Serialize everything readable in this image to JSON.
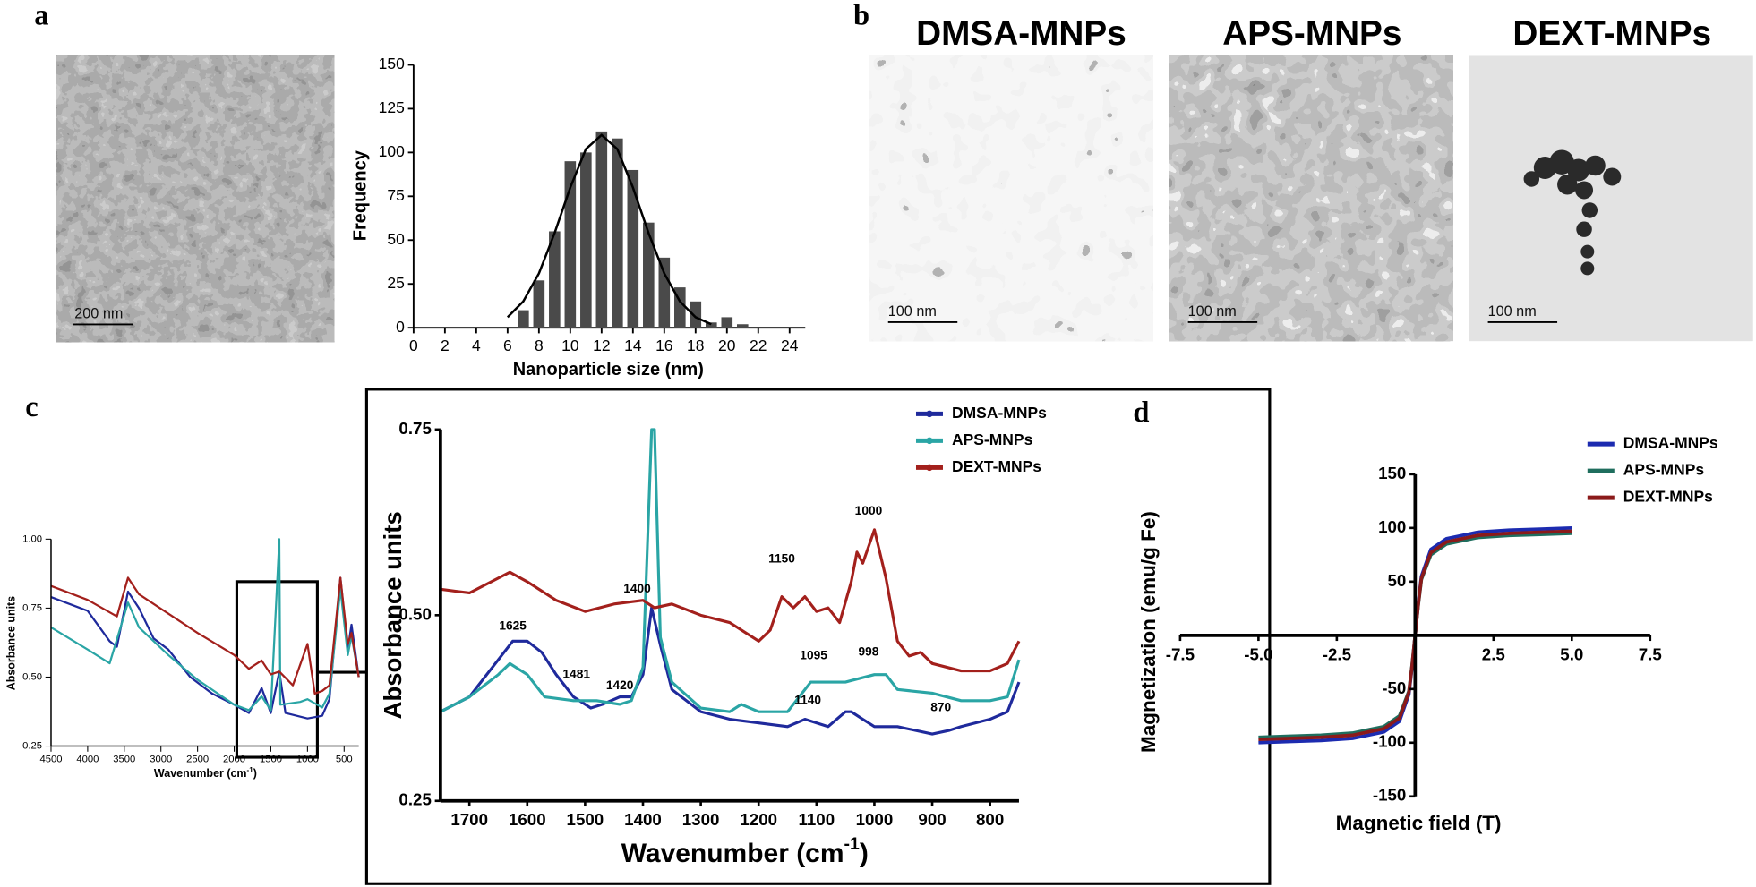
{
  "panel_labels": [
    "a",
    "b",
    "c",
    "d"
  ],
  "images": [
    {
      "scale_bar": "200 nm"
    },
    {
      "title": "DMSA-MNPs",
      "scale_bar": "100 nm"
    },
    {
      "title": "APS-MNPs",
      "scale_bar": "100 nm"
    },
    {
      "title": "DEXT-MNPs",
      "scale_bar": "100 nm"
    }
  ],
  "chart_data": [
    {
      "type": "histogram",
      "x_label": "Nanoparticle size (nm)",
      "y_label": "Frequency",
      "bins": [
        6.5,
        7.5,
        8.5,
        9.5,
        10.5,
        11.5,
        12.5,
        13.5,
        14.5,
        15.5,
        16.5,
        17.5,
        18.5,
        19.5,
        20.5,
        21.5
      ],
      "counts": [
        10,
        27,
        55,
        95,
        100,
        112,
        108,
        90,
        60,
        40,
        23,
        15,
        3,
        6,
        2
      ],
      "color": "#4a4a4a",
      "fit": {
        "x": [
          6,
          7,
          8,
          9,
          10,
          11,
          12,
          13,
          14,
          15,
          16,
          17,
          18,
          19
        ],
        "values": [
          6,
          15,
          31,
          54,
          80,
          102,
          110,
          102,
          80,
          54,
          31,
          15,
          6,
          2
        ],
        "color": "#000000"
      },
      "xlim": [
        0,
        25
      ],
      "xticks": [
        0,
        2,
        4,
        6,
        8,
        10,
        12,
        14,
        16,
        18,
        20,
        22,
        24
      ],
      "ylim": [
        0,
        150
      ],
      "yticks": [
        0,
        25,
        50,
        75,
        100,
        125,
        150
      ]
    },
    {
      "type": "line",
      "x_label": [
        "Wavenumber (cm",
        "-1",
        ")"
      ],
      "y_label": "Absorbance units",
      "xlim": [
        4500,
        300
      ],
      "xticks": [
        4500,
        4000,
        3500,
        3000,
        2500,
        2000,
        1500,
        1000,
        500
      ],
      "ylim": [
        0.25,
        1.0
      ],
      "yticks": [
        0.25,
        {
          "value": 0.5,
          "label": "0.50"
        },
        0.75,
        {
          "value": 1.0,
          "label": "1.00"
        }
      ],
      "series": [
        {
          "name": "DMSA-MNPs",
          "color": "#1f2a9c",
          "x": [
            4500,
            4000,
            3700,
            3600,
            3450,
            3300,
            3100,
            2900,
            2600,
            2300,
            2000,
            1800,
            1625,
            1500,
            1385,
            1300,
            1000,
            800,
            700,
            550,
            450,
            400,
            300
          ],
          "values": [
            0.79,
            0.74,
            0.63,
            0.61,
            0.81,
            0.75,
            0.64,
            0.6,
            0.5,
            0.44,
            0.4,
            0.37,
            0.46,
            0.37,
            0.52,
            0.37,
            0.35,
            0.36,
            0.42,
            0.86,
            0.6,
            0.69,
            0.5
          ]
        },
        {
          "name": "APS-MNPs",
          "color": "#2aa5a5",
          "x": [
            4500,
            4000,
            3700,
            3450,
            3300,
            2900,
            2500,
            2000,
            1800,
            1625,
            1500,
            1385,
            1370,
            1100,
            1000,
            800,
            700,
            550,
            450,
            400,
            300
          ],
          "values": [
            0.68,
            0.6,
            0.55,
            0.77,
            0.68,
            0.58,
            0.49,
            0.4,
            0.38,
            0.43,
            0.38,
            1.0,
            0.4,
            0.41,
            0.42,
            0.39,
            0.44,
            0.82,
            0.58,
            0.65,
            0.5
          ]
        },
        {
          "name": "DEXT-MNPs",
          "color": "#a3201c",
          "x": [
            4500,
            4000,
            3600,
            3450,
            3300,
            2900,
            2500,
            2000,
            1800,
            1625,
            1500,
            1385,
            1200,
            1000,
            900,
            800,
            700,
            550,
            450,
            400,
            300
          ],
          "values": [
            0.83,
            0.78,
            0.72,
            0.86,
            0.8,
            0.73,
            0.66,
            0.58,
            0.53,
            0.56,
            0.51,
            0.52,
            0.47,
            0.62,
            0.44,
            0.45,
            0.47,
            0.86,
            0.62,
            0.66,
            0.5
          ]
        }
      ]
    },
    {
      "type": "line",
      "x_label": [
        "Wavenumber (cm",
        "-1",
        ")"
      ],
      "y_label": "Absorbance units",
      "xlim": [
        1750,
        750
      ],
      "xticks": [
        1700,
        1600,
        1500,
        1400,
        1300,
        1200,
        1100,
        1000,
        900,
        800
      ],
      "ylim": [
        0.25,
        0.75
      ],
      "yticks": [
        0.25,
        {
          "value": 0.5,
          "label": "0.50"
        },
        0.75
      ],
      "legend": "upper right",
      "series": [
        {
          "name": "DMSA-MNPs",
          "color": "#1f2a9c",
          "x": [
            1750,
            1700,
            1650,
            1625,
            1600,
            1575,
            1550,
            1520,
            1490,
            1470,
            1440,
            1420,
            1400,
            1385,
            1370,
            1350,
            1300,
            1250,
            1200,
            1150,
            1120,
            1100,
            1080,
            1050,
            1040,
            1020,
            1000,
            960,
            900,
            870,
            850,
            800,
            770,
            750
          ],
          "values": [
            0.37,
            0.39,
            0.44,
            0.465,
            0.465,
            0.45,
            0.42,
            0.39,
            0.375,
            0.38,
            0.39,
            0.39,
            0.42,
            0.51,
            0.46,
            0.4,
            0.37,
            0.36,
            0.355,
            0.35,
            0.36,
            0.355,
            0.35,
            0.37,
            0.37,
            0.36,
            0.35,
            0.35,
            0.34,
            0.345,
            0.35,
            0.36,
            0.37,
            0.41
          ]
        },
        {
          "name": "APS-MNPs",
          "color": "#2aa5a5",
          "x": [
            1750,
            1700,
            1650,
            1630,
            1600,
            1570,
            1520,
            1480,
            1440,
            1420,
            1400,
            1385,
            1380,
            1370,
            1350,
            1300,
            1250,
            1230,
            1200,
            1150,
            1110,
            1080,
            1050,
            1000,
            980,
            960,
            900,
            850,
            800,
            770,
            750
          ],
          "values": [
            0.37,
            0.39,
            0.42,
            0.435,
            0.42,
            0.39,
            0.385,
            0.385,
            0.38,
            0.385,
            0.43,
            0.75,
            0.75,
            0.47,
            0.41,
            0.375,
            0.37,
            0.38,
            0.37,
            0.37,
            0.41,
            0.41,
            0.41,
            0.42,
            0.42,
            0.4,
            0.395,
            0.385,
            0.385,
            0.39,
            0.44
          ]
        },
        {
          "name": "DEXT-MNPs",
          "color": "#a3201c",
          "x": [
            1750,
            1700,
            1650,
            1630,
            1600,
            1550,
            1500,
            1450,
            1400,
            1380,
            1350,
            1300,
            1250,
            1200,
            1180,
            1160,
            1140,
            1120,
            1100,
            1080,
            1060,
            1040,
            1030,
            1020,
            1000,
            980,
            960,
            940,
            920,
            900,
            850,
            800,
            770,
            750
          ],
          "values": [
            0.535,
            0.53,
            0.55,
            0.558,
            0.545,
            0.52,
            0.505,
            0.515,
            0.52,
            0.51,
            0.515,
            0.5,
            0.49,
            0.465,
            0.48,
            0.525,
            0.51,
            0.525,
            0.505,
            0.51,
            0.49,
            0.545,
            0.585,
            0.57,
            0.615,
            0.55,
            0.465,
            0.445,
            0.45,
            0.435,
            0.425,
            0.425,
            0.435,
            0.465
          ]
        }
      ],
      "annotations": [
        {
          "text": "1625",
          "x": 1625,
          "y": 0.485
        },
        {
          "text": "1481",
          "x": 1515,
          "y": 0.42
        },
        {
          "text": "1420",
          "x": 1440,
          "y": 0.405
        },
        {
          "text": "1400",
          "x": 1410,
          "y": 0.535
        },
        {
          "text": "1150",
          "x": 1160,
          "y": 0.575
        },
        {
          "text": "1000",
          "x": 1010,
          "y": 0.64
        },
        {
          "text": "1095",
          "x": 1105,
          "y": 0.445
        },
        {
          "text": "998",
          "x": 1010,
          "y": 0.45
        },
        {
          "text": "1140",
          "x": 1115,
          "y": 0.385
        },
        {
          "text": "870",
          "x": 885,
          "y": 0.375
        }
      ]
    },
    {
      "type": "line",
      "x_label": "Magnetic field (T)",
      "y_label": "Magnetization (emu/g Fe)",
      "xlim": [
        -7.5,
        7.5
      ],
      "xticks": [
        -7.5,
        {
          "value": -5,
          "label": "-5.0"
        },
        -2.5,
        2.5,
        {
          "value": 5,
          "label": "5.0"
        },
        7.5
      ],
      "ylim": [
        -150,
        150
      ],
      "yticks": [
        -150,
        -100,
        -50,
        50,
        100,
        150
      ],
      "legend": "upper right",
      "series": [
        {
          "name": "DMSA-MNPs",
          "color": "#1c2bb0",
          "x": [
            -5,
            -4,
            -3,
            -2,
            -1,
            -0.5,
            -0.2,
            -0.1,
            0,
            0.1,
            0.2,
            0.5,
            1,
            2,
            3,
            4,
            5
          ],
          "values": [
            -100,
            -99,
            -98,
            -96,
            -90,
            -80,
            -55,
            -30,
            0,
            30,
            55,
            80,
            90,
            96,
            98,
            99,
            100
          ]
        },
        {
          "name": "APS-MNPs",
          "color": "#1f6e5e",
          "x": [
            -5,
            -4,
            -3,
            -2,
            -1,
            -0.5,
            -0.2,
            -0.1,
            0,
            0.1,
            0.2,
            0.5,
            1,
            2,
            3,
            4,
            5
          ],
          "values": [
            -95,
            -94,
            -93,
            -91,
            -85,
            -75,
            -52,
            -28,
            0,
            28,
            52,
            75,
            85,
            91,
            93,
            94,
            95
          ]
        },
        {
          "name": "DEXT-MNPs",
          "color": "#8b1a1a",
          "x": [
            -5,
            -4,
            -3,
            -2,
            -1,
            -0.5,
            -0.2,
            -0.1,
            0,
            0.1,
            0.2,
            0.5,
            1,
            2,
            3,
            4,
            5
          ],
          "values": [
            -97,
            -96,
            -95,
            -93,
            -87,
            -77,
            -53,
            -29,
            0,
            29,
            53,
            77,
            87,
            93,
            95,
            96,
            97
          ]
        }
      ]
    }
  ]
}
